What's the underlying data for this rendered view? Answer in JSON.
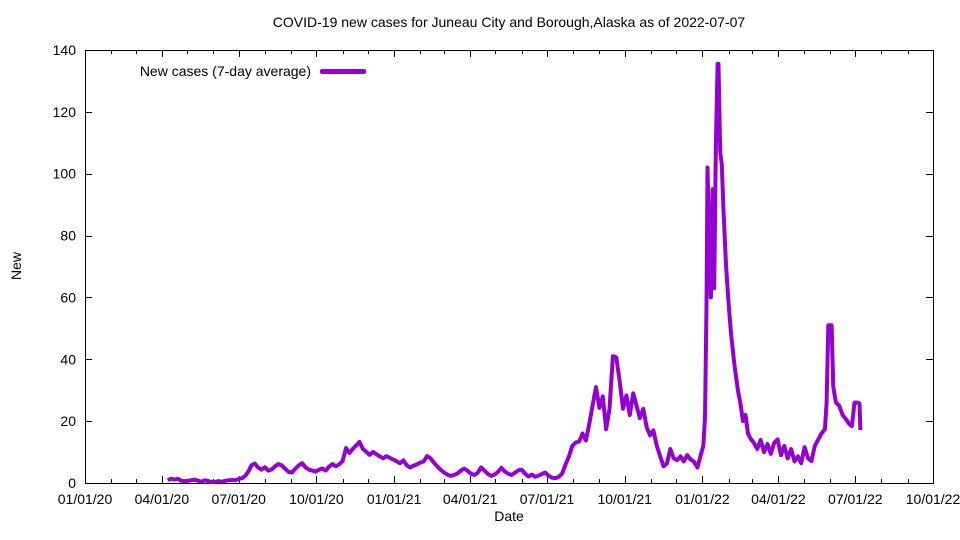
{
  "title": "COVID-19 new cases for Juneau City and Borough,Alaska as of 2022-07-07",
  "legend": {
    "label": "New cases (7-day average)"
  },
  "axes": {
    "x_label": "Date",
    "y_label": "New"
  },
  "colors": {
    "line": "#9400D3",
    "axis": "#000000",
    "background": "#FFFFFF"
  },
  "chart_data": {
    "type": "line",
    "title": "COVID-19 new cases for Juneau City and Borough,Alaska as of 2022-07-07",
    "xlabel": "Date",
    "ylabel": "New",
    "xlim": [
      "2020-01-01",
      "2022-10-01"
    ],
    "ylim": [
      0,
      140
    ],
    "grid": false,
    "legend_position": "top-left",
    "y_ticks": [
      0,
      20,
      40,
      60,
      80,
      100,
      120,
      140
    ],
    "x_ticks": [
      {
        "date": "2020-01-01",
        "label": "01/01/20"
      },
      {
        "date": "2020-04-01",
        "label": "04/01/20"
      },
      {
        "date": "2020-07-01",
        "label": "07/01/20"
      },
      {
        "date": "2020-10-01",
        "label": "10/01/20"
      },
      {
        "date": "2021-01-01",
        "label": "01/01/21"
      },
      {
        "date": "2021-04-01",
        "label": "04/01/21"
      },
      {
        "date": "2021-07-01",
        "label": "07/01/21"
      },
      {
        "date": "2021-10-01",
        "label": "10/01/21"
      },
      {
        "date": "2022-01-01",
        "label": "01/01/22"
      },
      {
        "date": "2022-04-01",
        "label": "04/01/22"
      },
      {
        "date": "2022-07-01",
        "label": "07/01/22"
      },
      {
        "date": "2022-10-01",
        "label": "10/01/22"
      }
    ],
    "x_minor_ticks": "monthly",
    "series": [
      {
        "name": "New cases (7-day average)",
        "color": "#9400D3",
        "points": [
          [
            "2020-04-08",
            0.9
          ],
          [
            "2020-04-12",
            1.4
          ],
          [
            "2020-04-16",
            1.1
          ],
          [
            "2020-04-20",
            1.4
          ],
          [
            "2020-04-24",
            0.7
          ],
          [
            "2020-04-28",
            0.6
          ],
          [
            "2020-05-02",
            0.7
          ],
          [
            "2020-05-06",
            0.9
          ],
          [
            "2020-05-10",
            1.1
          ],
          [
            "2020-05-14",
            0.7
          ],
          [
            "2020-05-18",
            0.4
          ],
          [
            "2020-05-22",
            0.9
          ],
          [
            "2020-05-26",
            0.6
          ],
          [
            "2020-05-30",
            0.3
          ],
          [
            "2020-06-03",
            0.4
          ],
          [
            "2020-06-07",
            0.6
          ],
          [
            "2020-06-11",
            0.4
          ],
          [
            "2020-06-15",
            0.7
          ],
          [
            "2020-06-19",
            0.9
          ],
          [
            "2020-06-23",
            1.0
          ],
          [
            "2020-06-27",
            0.9
          ],
          [
            "2020-07-01",
            1.3
          ],
          [
            "2020-07-05",
            1.6
          ],
          [
            "2020-07-09",
            2.4
          ],
          [
            "2020-07-13",
            4.0
          ],
          [
            "2020-07-16",
            5.7
          ],
          [
            "2020-07-20",
            6.3
          ],
          [
            "2020-07-24",
            5.0
          ],
          [
            "2020-07-28",
            4.3
          ],
          [
            "2020-08-01",
            5.1
          ],
          [
            "2020-08-05",
            4.0
          ],
          [
            "2020-08-09",
            4.4
          ],
          [
            "2020-08-13",
            5.4
          ],
          [
            "2020-08-17",
            6.1
          ],
          [
            "2020-08-21",
            5.7
          ],
          [
            "2020-08-25",
            4.6
          ],
          [
            "2020-08-29",
            3.6
          ],
          [
            "2020-09-02",
            3.4
          ],
          [
            "2020-09-06",
            4.6
          ],
          [
            "2020-09-10",
            5.7
          ],
          [
            "2020-09-14",
            6.4
          ],
          [
            "2020-09-18",
            5.1
          ],
          [
            "2020-09-22",
            4.3
          ],
          [
            "2020-09-26",
            4.0
          ],
          [
            "2020-09-30",
            3.7
          ],
          [
            "2020-10-04",
            4.3
          ],
          [
            "2020-10-08",
            4.7
          ],
          [
            "2020-10-12",
            4.0
          ],
          [
            "2020-10-16",
            5.3
          ],
          [
            "2020-10-20",
            6.1
          ],
          [
            "2020-10-24",
            5.4
          ],
          [
            "2020-10-28",
            6.0
          ],
          [
            "2020-11-01",
            7.1
          ],
          [
            "2020-11-05",
            11.3
          ],
          [
            "2020-11-09",
            9.7
          ],
          [
            "2020-11-13",
            11.0
          ],
          [
            "2020-11-17",
            12.1
          ],
          [
            "2020-11-21",
            13.3
          ],
          [
            "2020-11-25",
            11.0
          ],
          [
            "2020-11-29",
            10.1
          ],
          [
            "2020-12-03",
            9.1
          ],
          [
            "2020-12-07",
            10.0
          ],
          [
            "2020-12-11",
            9.3
          ],
          [
            "2020-12-15",
            8.6
          ],
          [
            "2020-12-19",
            8.0
          ],
          [
            "2020-12-23",
            8.7
          ],
          [
            "2020-12-27",
            8.1
          ],
          [
            "2020-12-31",
            7.6
          ],
          [
            "2021-01-04",
            7.0
          ],
          [
            "2021-01-08",
            6.4
          ],
          [
            "2021-01-12",
            7.3
          ],
          [
            "2021-01-16",
            5.7
          ],
          [
            "2021-01-20",
            5.0
          ],
          [
            "2021-01-24",
            5.6
          ],
          [
            "2021-01-28",
            6.0
          ],
          [
            "2021-02-01",
            6.6
          ],
          [
            "2021-02-05",
            7.0
          ],
          [
            "2021-02-09",
            8.7
          ],
          [
            "2021-02-13",
            8.0
          ],
          [
            "2021-02-17",
            6.6
          ],
          [
            "2021-02-21",
            5.4
          ],
          [
            "2021-02-25",
            4.3
          ],
          [
            "2021-03-01",
            3.4
          ],
          [
            "2021-03-05",
            2.7
          ],
          [
            "2021-03-09",
            2.3
          ],
          [
            "2021-03-13",
            2.6
          ],
          [
            "2021-03-17",
            3.1
          ],
          [
            "2021-03-21",
            4.0
          ],
          [
            "2021-03-25",
            4.7
          ],
          [
            "2021-03-29",
            3.9
          ],
          [
            "2021-04-02",
            3.0
          ],
          [
            "2021-04-06",
            2.6
          ],
          [
            "2021-04-10",
            3.3
          ],
          [
            "2021-04-14",
            5.0
          ],
          [
            "2021-04-18",
            4.0
          ],
          [
            "2021-04-22",
            2.9
          ],
          [
            "2021-04-26",
            2.3
          ],
          [
            "2021-04-30",
            2.7
          ],
          [
            "2021-05-04",
            3.6
          ],
          [
            "2021-05-08",
            4.9
          ],
          [
            "2021-05-12",
            3.7
          ],
          [
            "2021-05-16",
            3.0
          ],
          [
            "2021-05-20",
            2.6
          ],
          [
            "2021-05-24",
            3.3
          ],
          [
            "2021-05-28",
            4.1
          ],
          [
            "2021-06-01",
            4.3
          ],
          [
            "2021-06-05",
            3.0
          ],
          [
            "2021-06-09",
            2.1
          ],
          [
            "2021-06-13",
            2.7
          ],
          [
            "2021-06-17",
            2.0
          ],
          [
            "2021-06-21",
            2.4
          ],
          [
            "2021-06-25",
            2.9
          ],
          [
            "2021-06-29",
            3.4
          ],
          [
            "2021-07-03",
            2.3
          ],
          [
            "2021-07-07",
            1.7
          ],
          [
            "2021-07-11",
            1.6
          ],
          [
            "2021-07-15",
            2.0
          ],
          [
            "2021-07-19",
            3.1
          ],
          [
            "2021-07-23",
            6.0
          ],
          [
            "2021-07-27",
            8.6
          ],
          [
            "2021-07-31",
            12.0
          ],
          [
            "2021-08-04",
            13.1
          ],
          [
            "2021-08-08",
            13.4
          ],
          [
            "2021-08-12",
            16.0
          ],
          [
            "2021-08-16",
            13.7
          ],
          [
            "2021-08-20",
            19.0
          ],
          [
            "2021-08-24",
            25.1
          ],
          [
            "2021-08-28",
            31.0
          ],
          [
            "2021-09-01",
            24.3
          ],
          [
            "2021-09-05",
            28.0
          ],
          [
            "2021-09-09",
            17.4
          ],
          [
            "2021-09-13",
            24.0
          ],
          [
            "2021-09-17",
            41.0
          ],
          [
            "2021-09-21",
            40.6
          ],
          [
            "2021-09-25",
            33.0
          ],
          [
            "2021-09-29",
            24.0
          ],
          [
            "2021-10-03",
            28.3
          ],
          [
            "2021-10-07",
            22.0
          ],
          [
            "2021-10-11",
            29.0
          ],
          [
            "2021-10-15",
            25.0
          ],
          [
            "2021-10-19",
            21.0
          ],
          [
            "2021-10-23",
            24.0
          ],
          [
            "2021-10-27",
            18.0
          ],
          [
            "2021-10-31",
            15.4
          ],
          [
            "2021-11-04",
            17.0
          ],
          [
            "2021-11-08",
            12.0
          ],
          [
            "2021-11-12",
            8.6
          ],
          [
            "2021-11-16",
            5.4
          ],
          [
            "2021-11-20",
            6.3
          ],
          [
            "2021-11-24",
            11.0
          ],
          [
            "2021-11-28",
            8.0
          ],
          [
            "2021-12-02",
            7.4
          ],
          [
            "2021-12-06",
            8.6
          ],
          [
            "2021-12-10",
            7.0
          ],
          [
            "2021-12-14",
            9.0
          ],
          [
            "2021-12-18",
            7.6
          ],
          [
            "2021-12-22",
            6.9
          ],
          [
            "2021-12-26",
            5.0
          ],
          [
            "2021-12-30",
            9.0
          ],
          [
            "2022-01-02",
            12.0
          ],
          [
            "2022-01-04",
            21.0
          ],
          [
            "2022-01-06",
            60.0
          ],
          [
            "2022-01-07",
            102.0
          ],
          [
            "2022-01-09",
            78.0
          ],
          [
            "2022-01-11",
            60.0
          ],
          [
            "2022-01-13",
            95.0
          ],
          [
            "2022-01-15",
            63.0
          ],
          [
            "2022-01-17",
            110.0
          ],
          [
            "2022-01-19",
            135.5
          ],
          [
            "2022-01-20",
            135.5
          ],
          [
            "2022-01-22",
            107.0
          ],
          [
            "2022-01-24",
            103.0
          ],
          [
            "2022-01-26",
            88.0
          ],
          [
            "2022-01-29",
            70.0
          ],
          [
            "2022-02-01",
            58.0
          ],
          [
            "2022-02-04",
            48.0
          ],
          [
            "2022-02-08",
            38.0
          ],
          [
            "2022-02-12",
            30.0
          ],
          [
            "2022-02-15",
            25.7
          ],
          [
            "2022-02-18",
            20.0
          ],
          [
            "2022-02-21",
            22.0
          ],
          [
            "2022-02-24",
            16.0
          ],
          [
            "2022-02-27",
            14.3
          ],
          [
            "2022-03-03",
            13.0
          ],
          [
            "2022-03-07",
            11.0
          ],
          [
            "2022-03-11",
            13.9
          ],
          [
            "2022-03-15",
            10.0
          ],
          [
            "2022-03-19",
            12.6
          ],
          [
            "2022-03-23",
            9.4
          ],
          [
            "2022-03-27",
            13.0
          ],
          [
            "2022-03-31",
            14.1
          ],
          [
            "2022-04-04",
            9.0
          ],
          [
            "2022-04-08",
            12.0
          ],
          [
            "2022-04-12",
            8.0
          ],
          [
            "2022-04-16",
            11.0
          ],
          [
            "2022-04-20",
            7.0
          ],
          [
            "2022-04-24",
            8.6
          ],
          [
            "2022-04-28",
            6.4
          ],
          [
            "2022-05-02",
            11.6
          ],
          [
            "2022-05-06",
            8.0
          ],
          [
            "2022-05-10",
            7.1
          ],
          [
            "2022-05-14",
            12.0
          ],
          [
            "2022-05-18",
            14.0
          ],
          [
            "2022-05-22",
            16.0
          ],
          [
            "2022-05-26",
            17.4
          ],
          [
            "2022-05-28",
            25.9
          ],
          [
            "2022-05-30",
            51.0
          ],
          [
            "2022-06-03",
            51.0
          ],
          [
            "2022-06-05",
            31.0
          ],
          [
            "2022-06-08",
            26.0
          ],
          [
            "2022-06-12",
            25.0
          ],
          [
            "2022-06-16",
            22.0
          ],
          [
            "2022-06-20",
            20.6
          ],
          [
            "2022-06-24",
            19.0
          ],
          [
            "2022-06-27",
            18.4
          ],
          [
            "2022-06-30",
            26.0
          ],
          [
            "2022-07-04",
            26.0
          ],
          [
            "2022-07-06",
            25.7
          ],
          [
            "2022-07-07",
            17.1
          ]
        ]
      }
    ]
  }
}
